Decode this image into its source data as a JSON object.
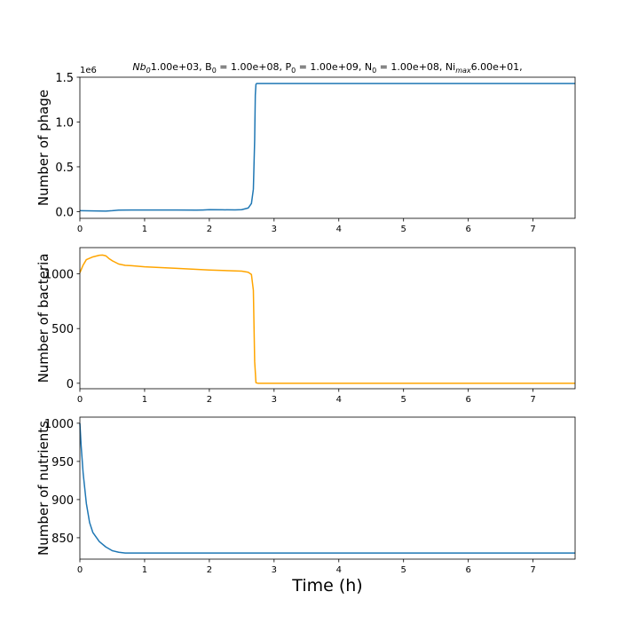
{
  "colors": {
    "phage": "#1f77b4",
    "bacteria": "#ffa500",
    "nutrients": "#1f77b4",
    "axes": "#000000"
  },
  "chart_data": [
    {
      "type": "line",
      "title": "Nb0 1.00e+03, B0 = 1.00e+08, P0 = 1.00e+09, N0 = 1.00e+08, Ni_max 6.00e+01,",
      "title_parts": {
        "p1": "Nb",
        "p1_sub": "0",
        "p2": "1.00e+03, B",
        "p2_sub": "0",
        "p3": " = 1.00e+08, P",
        "p3_sub": "0",
        "p4": " = 1.00e+09, N",
        "p4_sub": "0",
        "p5": " = 1.00e+08, Ni",
        "p5_sub": "max",
        "p6": "6.00e+01,"
      },
      "xlabel": "",
      "ylabel": "Number of phage",
      "offset_text": "1e6",
      "xlim": [
        0,
        7.65
      ],
      "ylim": [
        -0.075,
        1.5
      ],
      "xticks": [
        0,
        1,
        2,
        3,
        4,
        5,
        6,
        7
      ],
      "xtick_labels": [
        "0",
        "1",
        "2",
        "3",
        "4",
        "5",
        "6",
        "7"
      ],
      "yticks": [
        0.0,
        0.5,
        1.0,
        1.5
      ],
      "ytick_labels": [
        "0.0",
        "0.5",
        "1.0",
        "1.5"
      ],
      "series": [
        {
          "x": [
            0,
            0.2,
            0.4,
            0.5,
            0.6,
            0.8,
            1.0,
            1.5,
            1.8,
            1.9,
            2.0,
            2.2,
            2.4,
            2.5,
            2.6,
            2.65,
            2.68,
            2.7,
            2.71,
            2.72,
            2.73,
            2.75,
            3.0,
            4.0,
            5.0,
            6.0,
            7.0,
            7.65
          ],
          "y": [
            0.01,
            0.008,
            0.006,
            0.01,
            0.017,
            0.018,
            0.018,
            0.018,
            0.016,
            0.018,
            0.021,
            0.02,
            0.019,
            0.022,
            0.04,
            0.09,
            0.25,
            0.8,
            1.3,
            1.42,
            1.43,
            1.43,
            1.43,
            1.43,
            1.43,
            1.43,
            1.43,
            1.43
          ]
        }
      ]
    },
    {
      "type": "line",
      "xlabel": "",
      "ylabel": "Number of bacteria",
      "xlim": [
        0,
        7.65
      ],
      "ylim": [
        -50,
        1240
      ],
      "xticks": [
        0,
        1,
        2,
        3,
        4,
        5,
        6,
        7
      ],
      "xtick_labels": [
        "0",
        "1",
        "2",
        "3",
        "4",
        "5",
        "6",
        "7"
      ],
      "yticks": [
        0,
        500,
        1000
      ],
      "ytick_labels": [
        "0",
        "500",
        "1000"
      ],
      "series": [
        {
          "x": [
            0,
            0.05,
            0.1,
            0.2,
            0.3,
            0.35,
            0.4,
            0.45,
            0.5,
            0.6,
            0.7,
            0.8,
            1.0,
            1.5,
            2.0,
            2.5,
            2.6,
            2.65,
            2.68,
            2.7,
            2.72,
            2.75,
            3.0,
            4.0,
            5.0,
            6.0,
            7.0,
            7.65
          ],
          "y": [
            1010,
            1080,
            1130,
            1155,
            1170,
            1172,
            1165,
            1140,
            1120,
            1090,
            1078,
            1075,
            1065,
            1050,
            1035,
            1025,
            1015,
            995,
            850,
            200,
            5,
            0,
            0,
            0,
            0,
            0,
            0,
            0
          ]
        }
      ]
    },
    {
      "type": "line",
      "xlabel": "Time (h)",
      "ylabel": "Number of nutrients",
      "xlim": [
        0,
        7.65
      ],
      "ylim": [
        822,
        1008
      ],
      "xticks": [
        0,
        1,
        2,
        3,
        4,
        5,
        6,
        7
      ],
      "xtick_labels": [
        "0",
        "1",
        "2",
        "3",
        "4",
        "5",
        "6",
        "7"
      ],
      "yticks": [
        850,
        900,
        950,
        1000
      ],
      "ytick_labels": [
        "850",
        "900",
        "950",
        "1000"
      ],
      "series": [
        {
          "x": [
            0,
            0.02,
            0.05,
            0.1,
            0.15,
            0.2,
            0.3,
            0.4,
            0.5,
            0.6,
            0.7,
            1.0,
            2.0,
            3.0,
            4.0,
            5.0,
            6.0,
            7.0,
            7.65
          ],
          "y": [
            1000,
            970,
            935,
            895,
            870,
            857,
            845,
            838,
            833,
            831,
            830,
            830,
            830,
            830,
            830,
            830,
            830,
            830,
            830
          ]
        }
      ]
    }
  ]
}
